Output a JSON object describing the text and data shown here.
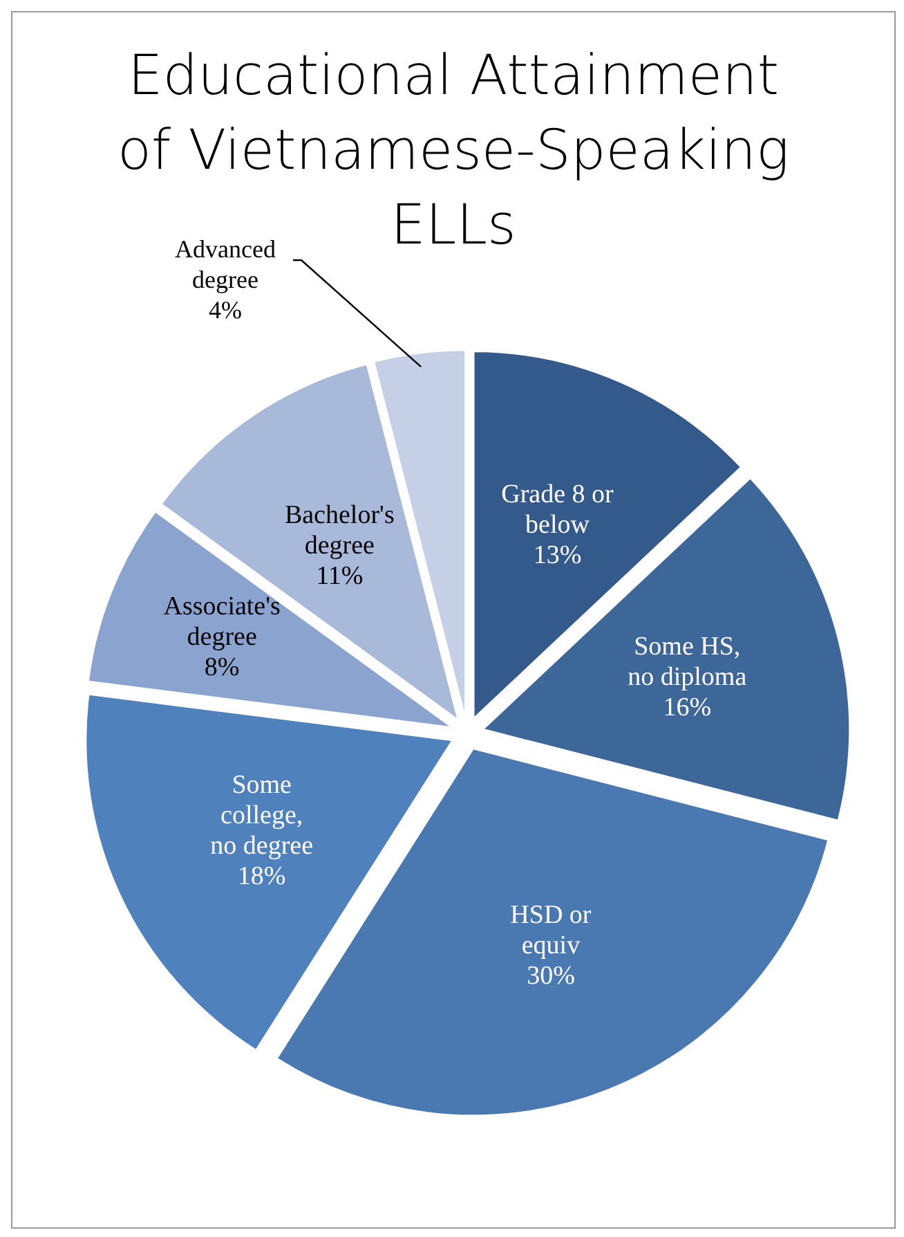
{
  "chart_data": {
    "type": "pie",
    "title": "Educational Attainment of Vietnamese-Speaking ELLs",
    "categories": [
      "Grade 8 or below",
      "Some HS, no diploma",
      "HSD or equiv",
      "Some college, no degree",
      "Associate's degree",
      "Bachelor's degree",
      "Advanced degree"
    ],
    "values": [
      13,
      16,
      30,
      18,
      8,
      11,
      4
    ],
    "value_labels": [
      "13%",
      "16%",
      "30%",
      "18%",
      "8%",
      "11%",
      "4%"
    ],
    "colors": [
      "#335a8a",
      "#3d6699",
      "#4a78b0",
      "#4f81bd",
      "#8aa4cf",
      "#a9b9da",
      "#c5d0e6"
    ]
  }
}
